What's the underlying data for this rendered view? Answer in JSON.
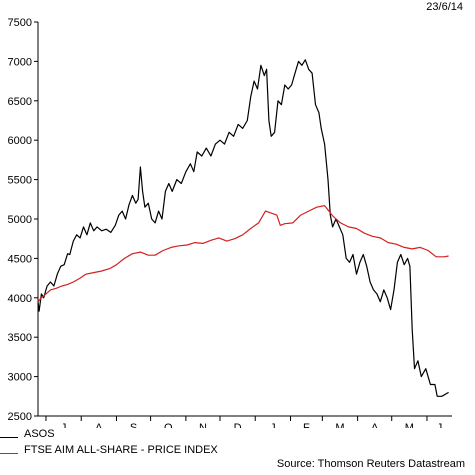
{
  "date_stamp": "23/6/14",
  "source": "Source: Thomson Reuters Datastream",
  "chart_data": {
    "type": "line",
    "title": "",
    "xlabel": "",
    "ylabel": "",
    "ylim": [
      2500,
      7500
    ],
    "yticks": [
      2500,
      3000,
      3500,
      4000,
      4500,
      5000,
      5500,
      6000,
      6500,
      7000,
      7500
    ],
    "xlim": [
      "2013-06-24",
      "2014-06-23"
    ],
    "month_ticks": [
      "2013-07-01",
      "2013-08-01",
      "2013-09-01",
      "2013-10-01",
      "2013-11-01",
      "2013-12-01",
      "2014-01-01",
      "2014-02-01",
      "2014-03-01",
      "2014-04-01",
      "2014-05-01",
      "2014-06-01"
    ],
    "month_labels": [
      "J",
      "A",
      "S",
      "O",
      "N",
      "D",
      "J",
      "F",
      "M",
      "A",
      "M",
      "J"
    ],
    "grid": false,
    "legend_position": "bottom-left",
    "series": [
      {
        "name": "ASOS",
        "color": "#000000",
        "points": [
          [
            "2013-06-24",
            3950
          ],
          [
            "2013-06-25",
            3830
          ],
          [
            "2013-06-27",
            4050
          ],
          [
            "2013-06-29",
            4000
          ],
          [
            "2013-07-02",
            4150
          ],
          [
            "2013-07-05",
            4200
          ],
          [
            "2013-07-08",
            4150
          ],
          [
            "2013-07-11",
            4300
          ],
          [
            "2013-07-14",
            4400
          ],
          [
            "2013-07-17",
            4420
          ],
          [
            "2013-07-20",
            4560
          ],
          [
            "2013-07-22",
            4550
          ],
          [
            "2013-07-25",
            4720
          ],
          [
            "2013-07-28",
            4800
          ],
          [
            "2013-07-31",
            4760
          ],
          [
            "2013-08-03",
            4900
          ],
          [
            "2013-08-06",
            4800
          ],
          [
            "2013-08-09",
            4950
          ],
          [
            "2013-08-12",
            4850
          ],
          [
            "2013-08-15",
            4900
          ],
          [
            "2013-08-19",
            4850
          ],
          [
            "2013-08-23",
            4870
          ],
          [
            "2013-08-27",
            4830
          ],
          [
            "2013-08-31",
            4920
          ],
          [
            "2013-09-03",
            5050
          ],
          [
            "2013-09-06",
            5100
          ],
          [
            "2013-09-09",
            5000
          ],
          [
            "2013-09-12",
            5180
          ],
          [
            "2013-09-15",
            5300
          ],
          [
            "2013-09-18",
            5200
          ],
          [
            "2013-09-20",
            5250
          ],
          [
            "2013-09-22",
            5660
          ],
          [
            "2013-09-24",
            5350
          ],
          [
            "2013-09-26",
            5150
          ],
          [
            "2013-09-29",
            5200
          ],
          [
            "2013-10-02",
            5000
          ],
          [
            "2013-10-05",
            4950
          ],
          [
            "2013-10-08",
            5100
          ],
          [
            "2013-10-11",
            5000
          ],
          [
            "2013-10-14",
            5350
          ],
          [
            "2013-10-17",
            5450
          ],
          [
            "2013-10-20",
            5350
          ],
          [
            "2013-10-24",
            5500
          ],
          [
            "2013-10-28",
            5450
          ],
          [
            "2013-11-01",
            5600
          ],
          [
            "2013-11-05",
            5700
          ],
          [
            "2013-11-08",
            5600
          ],
          [
            "2013-11-11",
            5850
          ],
          [
            "2013-11-15",
            5800
          ],
          [
            "2013-11-19",
            5900
          ],
          [
            "2013-11-23",
            5800
          ],
          [
            "2013-11-27",
            5950
          ],
          [
            "2013-12-01",
            6000
          ],
          [
            "2013-12-05",
            5950
          ],
          [
            "2013-12-09",
            6100
          ],
          [
            "2013-12-13",
            6050
          ],
          [
            "2013-12-17",
            6200
          ],
          [
            "2013-12-21",
            6150
          ],
          [
            "2013-12-25",
            6250
          ],
          [
            "2013-12-28",
            6550
          ],
          [
            "2013-12-31",
            6750
          ],
          [
            "2014-01-03",
            6650
          ],
          [
            "2014-01-06",
            6950
          ],
          [
            "2014-01-09",
            6820
          ],
          [
            "2014-01-11",
            6900
          ],
          [
            "2014-01-13",
            6250
          ],
          [
            "2014-01-15",
            6050
          ],
          [
            "2014-01-18",
            6100
          ],
          [
            "2014-01-21",
            6500
          ],
          [
            "2014-01-24",
            6450
          ],
          [
            "2014-01-27",
            6700
          ],
          [
            "2014-01-30",
            6650
          ],
          [
            "2014-02-02",
            6700
          ],
          [
            "2014-02-05",
            6850
          ],
          [
            "2014-02-08",
            7000
          ],
          [
            "2014-02-11",
            6950
          ],
          [
            "2014-02-14",
            7020
          ],
          [
            "2014-02-17",
            6900
          ],
          [
            "2014-02-20",
            6850
          ],
          [
            "2014-02-23",
            6450
          ],
          [
            "2014-02-26",
            6350
          ],
          [
            "2014-02-28",
            6150
          ],
          [
            "2014-03-03",
            5950
          ],
          [
            "2014-03-06",
            5500
          ],
          [
            "2014-03-08",
            5050
          ],
          [
            "2014-03-10",
            4900
          ],
          [
            "2014-03-13",
            5000
          ],
          [
            "2014-03-16",
            4900
          ],
          [
            "2014-03-19",
            4800
          ],
          [
            "2014-03-22",
            4500
          ],
          [
            "2014-03-25",
            4450
          ],
          [
            "2014-03-28",
            4550
          ],
          [
            "2014-03-31",
            4300
          ],
          [
            "2014-04-03",
            4450
          ],
          [
            "2014-04-06",
            4550
          ],
          [
            "2014-04-09",
            4400
          ],
          [
            "2014-04-12",
            4200
          ],
          [
            "2014-04-15",
            4100
          ],
          [
            "2014-04-18",
            4050
          ],
          [
            "2014-04-21",
            3950
          ],
          [
            "2014-04-24",
            4100
          ],
          [
            "2014-04-27",
            4000
          ],
          [
            "2014-04-30",
            3850
          ],
          [
            "2014-05-03",
            4100
          ],
          [
            "2014-05-06",
            4450
          ],
          [
            "2014-05-09",
            4550
          ],
          [
            "2014-05-12",
            4420
          ],
          [
            "2014-05-15",
            4500
          ],
          [
            "2014-05-17",
            4400
          ],
          [
            "2014-05-19",
            3600
          ],
          [
            "2014-05-21",
            3100
          ],
          [
            "2014-05-24",
            3200
          ],
          [
            "2014-05-27",
            3000
          ],
          [
            "2014-05-31",
            3100
          ],
          [
            "2014-06-04",
            2900
          ],
          [
            "2014-06-08",
            2900
          ],
          [
            "2014-06-10",
            2750
          ],
          [
            "2014-06-14",
            2750
          ],
          [
            "2014-06-20",
            2800
          ]
        ]
      },
      {
        "name": "FTSE AIM ALL-SHARE - PRICE INDEX",
        "color": "#d62020",
        "points": [
          [
            "2013-06-24",
            3950
          ],
          [
            "2013-06-27",
            4000
          ],
          [
            "2013-07-01",
            4050
          ],
          [
            "2013-07-05",
            4100
          ],
          [
            "2013-07-10",
            4120
          ],
          [
            "2013-07-15",
            4150
          ],
          [
            "2013-07-20",
            4170
          ],
          [
            "2013-07-25",
            4200
          ],
          [
            "2013-07-31",
            4250
          ],
          [
            "2013-08-05",
            4300
          ],
          [
            "2013-08-12",
            4320
          ],
          [
            "2013-08-19",
            4340
          ],
          [
            "2013-08-26",
            4370
          ],
          [
            "2013-09-01",
            4420
          ],
          [
            "2013-09-08",
            4500
          ],
          [
            "2013-09-15",
            4560
          ],
          [
            "2013-09-22",
            4580
          ],
          [
            "2013-09-29",
            4540
          ],
          [
            "2013-10-05",
            4540
          ],
          [
            "2013-10-12",
            4600
          ],
          [
            "2013-10-19",
            4640
          ],
          [
            "2013-10-26",
            4660
          ],
          [
            "2013-11-02",
            4670
          ],
          [
            "2013-11-09",
            4700
          ],
          [
            "2013-11-16",
            4690
          ],
          [
            "2013-11-23",
            4730
          ],
          [
            "2013-11-30",
            4760
          ],
          [
            "2013-12-07",
            4720
          ],
          [
            "2013-12-14",
            4750
          ],
          [
            "2013-12-21",
            4800
          ],
          [
            "2013-12-28",
            4880
          ],
          [
            "2014-01-04",
            4950
          ],
          [
            "2014-01-10",
            5100
          ],
          [
            "2014-01-14",
            5080
          ],
          [
            "2014-01-20",
            5050
          ],
          [
            "2014-01-23",
            4920
          ],
          [
            "2014-01-27",
            4940
          ],
          [
            "2014-02-03",
            4950
          ],
          [
            "2014-02-10",
            5050
          ],
          [
            "2014-02-17",
            5100
          ],
          [
            "2014-02-24",
            5150
          ],
          [
            "2014-03-03",
            5170
          ],
          [
            "2014-03-10",
            5040
          ],
          [
            "2014-03-17",
            4950
          ],
          [
            "2014-03-24",
            4900
          ],
          [
            "2014-03-31",
            4880
          ],
          [
            "2014-04-07",
            4820
          ],
          [
            "2014-04-14",
            4780
          ],
          [
            "2014-04-21",
            4760
          ],
          [
            "2014-04-28",
            4700
          ],
          [
            "2014-05-05",
            4680
          ],
          [
            "2014-05-12",
            4640
          ],
          [
            "2014-05-19",
            4620
          ],
          [
            "2014-05-26",
            4640
          ],
          [
            "2014-06-02",
            4600
          ],
          [
            "2014-06-09",
            4520
          ],
          [
            "2014-06-16",
            4520
          ],
          [
            "2014-06-20",
            4530
          ]
        ]
      }
    ]
  },
  "legend": [
    {
      "name": "ASOS",
      "color": "#000000"
    },
    {
      "name": "FTSE AIM ALL-SHARE - PRICE INDEX",
      "color": "#d62020"
    }
  ]
}
